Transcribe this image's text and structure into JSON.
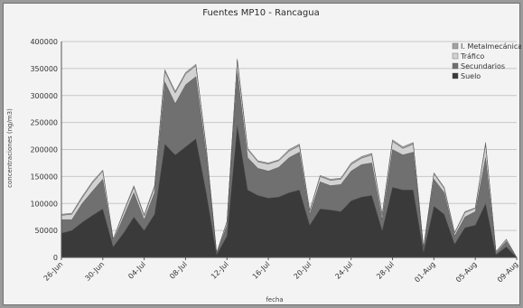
{
  "chart_data": {
    "type": "area",
    "stacked": true,
    "title": "Fuentes MP10 - Rancagua",
    "xlabel": "fecha",
    "ylabel": "concentraciones (ng/m3)",
    "ylim": [
      0,
      400000
    ],
    "yticks": [
      "0",
      "50000",
      "100000",
      "150000",
      "200000",
      "250000",
      "300000",
      "350000",
      "400000"
    ],
    "xticks": [
      "26-Jun",
      "30-Jun",
      "04-Jul",
      "08-Jul",
      "12-Jul",
      "16-Jul",
      "20-Jul",
      "24-Jul",
      "28-Jul",
      "01-Aug",
      "05-Aug",
      "09-Aug"
    ],
    "grid": true,
    "legend_position": "top-right",
    "x": [
      "26-Jun",
      "27-Jun",
      "28-Jun",
      "29-Jun",
      "30-Jun",
      "01-Jul",
      "02-Jul",
      "03-Jul",
      "04-Jul",
      "05-Jul",
      "06-Jul",
      "07-Jul",
      "08-Jul",
      "09-Jul",
      "10-Jul",
      "11-Jul",
      "12-Jul",
      "13-Jul",
      "14-Jul",
      "15-Jul",
      "16-Jul",
      "17-Jul",
      "18-Jul",
      "19-Jul",
      "20-Jul",
      "21-Jul",
      "22-Jul",
      "23-Jul",
      "24-Jul",
      "25-Jul",
      "26-Jul",
      "27-Jul",
      "28-Jul",
      "29-Jul",
      "30-Jul",
      "31-Jul",
      "01-Aug",
      "02-Aug",
      "03-Aug",
      "04-Aug",
      "05-Aug",
      "06-Aug",
      "07-Aug",
      "08-Aug",
      "09-Aug"
    ],
    "series": [
      {
        "name": "Suelo",
        "color": "#3a3a3a",
        "values": [
          45000,
          50000,
          65000,
          78000,
          90000,
          20000,
          45000,
          75000,
          50000,
          80000,
          210000,
          190000,
          205000,
          220000,
          120000,
          5000,
          40000,
          245000,
          125000,
          115000,
          110000,
          112000,
          120000,
          125000,
          60000,
          90000,
          88000,
          85000,
          105000,
          112000,
          115000,
          50000,
          130000,
          125000,
          125000,
          10000,
          95000,
          80000,
          25000,
          55000,
          60000,
          100000,
          5000,
          20000,
          0
        ]
      },
      {
        "name": "Secundarios",
        "color": "#707070",
        "values": [
          25000,
          20000,
          35000,
          45000,
          55000,
          10000,
          30000,
          45000,
          20000,
          40000,
          115000,
          95000,
          115000,
          115000,
          70000,
          2000,
          20000,
          100000,
          60000,
          50000,
          50000,
          55000,
          65000,
          70000,
          20000,
          50000,
          45000,
          50000,
          55000,
          60000,
          60000,
          20000,
          70000,
          65000,
          70000,
          5000,
          50000,
          40000,
          15000,
          20000,
          25000,
          85000,
          3000,
          10000,
          0
        ]
      },
      {
        "name": "Tráfico",
        "color": "#d2d2d2",
        "values": [
          8000,
          10000,
          10000,
          15000,
          15000,
          3000,
          8000,
          10000,
          7000,
          10000,
          20000,
          20000,
          20000,
          20000,
          12000,
          1000,
          6000,
          20000,
          15000,
          12000,
          13000,
          12000,
          12000,
          12000,
          6000,
          10000,
          10000,
          10000,
          12000,
          12000,
          15000,
          8000,
          15000,
          12000,
          15000,
          2000,
          10000,
          8000,
          5000,
          8000,
          6000,
          25000,
          2000,
          3000,
          0
        ]
      },
      {
        "name": "I. Metalmecánica",
        "color": "#a3a3a3",
        "values": [
          2000,
          2000,
          3000,
          3000,
          2000,
          1000,
          2000,
          3000,
          2000,
          3000,
          3000,
          3000,
          3000,
          3000,
          2000,
          500,
          1000,
          3000,
          2000,
          2000,
          2000,
          2000,
          3000,
          3000,
          1000,
          2000,
          2000,
          2000,
          3000,
          3000,
          3000,
          2000,
          3000,
          3000,
          3000,
          1000,
          2000,
          2000,
          1000,
          2000,
          1000,
          3000,
          1000,
          1000,
          0
        ]
      }
    ]
  }
}
